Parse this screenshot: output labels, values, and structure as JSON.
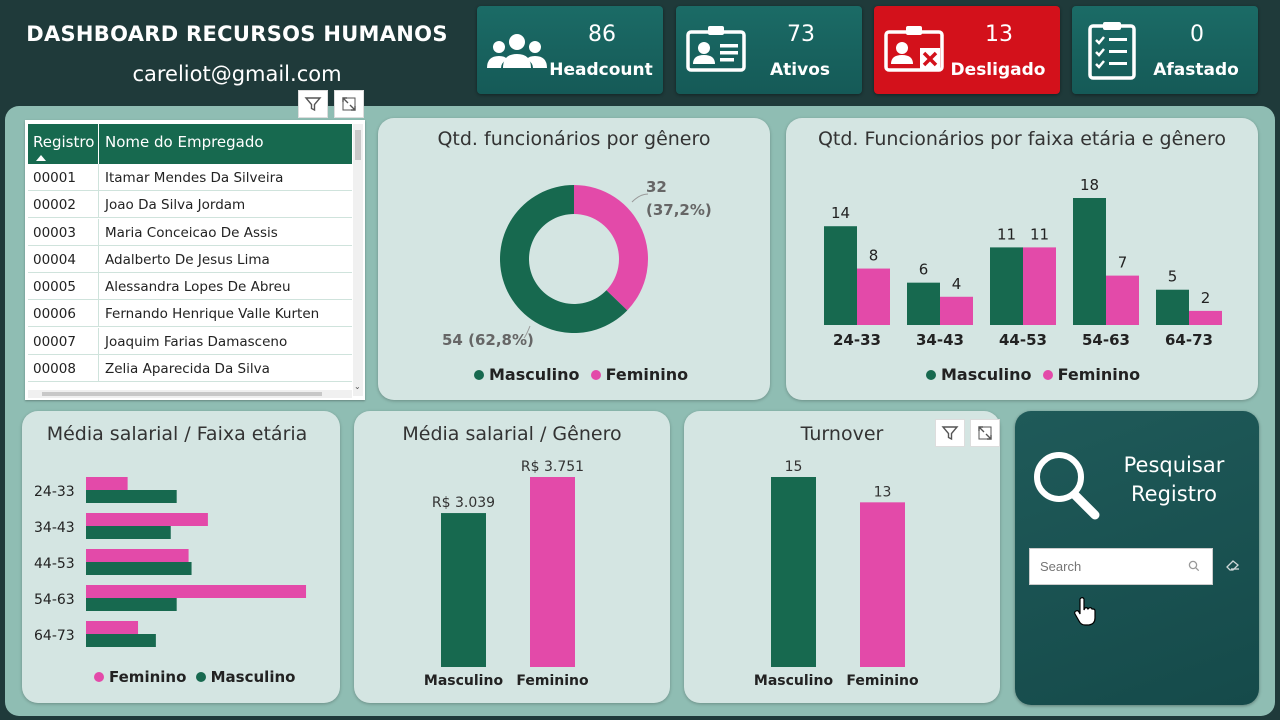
{
  "header": {
    "title": "DASHBOARD RECURSOS HUMANOS",
    "email": "careliot@gmail.com"
  },
  "kpis": [
    {
      "value": "86",
      "label": "Headcount",
      "icon": "people-group-icon",
      "color": "#1b6b66"
    },
    {
      "value": "73",
      "label": "Ativos",
      "icon": "id-card-icon",
      "color": "#1b6b66"
    },
    {
      "value": "13",
      "label": "Desligado",
      "icon": "user-x-card-icon",
      "color": "#d3111b"
    },
    {
      "value": "0",
      "label": "Afastado",
      "icon": "clipboard-checklist-icon",
      "color": "#1b6b66"
    }
  ],
  "colors": {
    "masculino": "#17694f",
    "feminino": "#e34aa9"
  },
  "table": {
    "headers": [
      "Registro",
      "Nome do Empregado"
    ],
    "rows": [
      [
        "00001",
        "Itamar Mendes Da Silveira"
      ],
      [
        "00002",
        "Joao Da Silva Jordam"
      ],
      [
        "00003",
        "Maria Conceicao De Assis"
      ],
      [
        "00004",
        "Adalberto De Jesus Lima"
      ],
      [
        "00005",
        "Alessandra Lopes De Abreu"
      ],
      [
        "00006",
        "Fernando Henrique Valle Kurten"
      ],
      [
        "00007",
        "Joaquim Farias Damasceno"
      ],
      [
        "00008",
        "Zelia Aparecida Da Silva"
      ]
    ]
  },
  "chart_data": [
    {
      "type": "pie",
      "title": "Qtd. funcionários por gênero",
      "categories": [
        "Masculino",
        "Feminino"
      ],
      "values": [
        54,
        32
      ],
      "data_labels": [
        "54 (62,8%)",
        "32 (37,2%)"
      ],
      "legend": [
        "Masculino",
        "Feminino"
      ],
      "legend_placement": "bottom"
    },
    {
      "type": "bar",
      "title": "Qtd. Funcionários por faixa etária e gênero",
      "categories": [
        "24-33",
        "34-43",
        "44-53",
        "54-63",
        "64-73"
      ],
      "series": [
        {
          "name": "Masculino",
          "values": [
            14,
            6,
            11,
            18,
            5
          ]
        },
        {
          "name": "Feminino",
          "values": [
            8,
            4,
            11,
            7,
            2
          ]
        }
      ],
      "ylim": [
        0,
        18
      ],
      "legend_placement": "bottom"
    },
    {
      "type": "bar",
      "orientation": "horizontal",
      "title": "Média salarial / Faixa etária",
      "categories": [
        "24-33",
        "34-43",
        "44-53",
        "54-63",
        "64-73"
      ],
      "series": [
        {
          "name": "Feminino",
          "values": [
            1400,
            4100,
            3450,
            7400,
            1750
          ]
        },
        {
          "name": "Masculino",
          "values": [
            3050,
            2850,
            3550,
            3050,
            2350
          ]
        }
      ],
      "xlim": [
        0,
        7500
      ],
      "legend_placement": "bottom"
    },
    {
      "type": "bar",
      "title": "Média salarial / Gênero",
      "categories": [
        "Masculino",
        "Feminino"
      ],
      "values": [
        3039,
        3751
      ],
      "data_labels": [
        "R$ 3.039",
        "R$ 3.751"
      ],
      "ylim": [
        0,
        3751
      ]
    },
    {
      "type": "bar",
      "title": "Turnover",
      "categories": [
        "Masculino",
        "Feminino"
      ],
      "values": [
        15,
        13
      ],
      "ylim": [
        0,
        15
      ]
    }
  ],
  "search": {
    "title_line1": "Pesquisar",
    "title_line2": "Registro",
    "placeholder": "Search"
  }
}
